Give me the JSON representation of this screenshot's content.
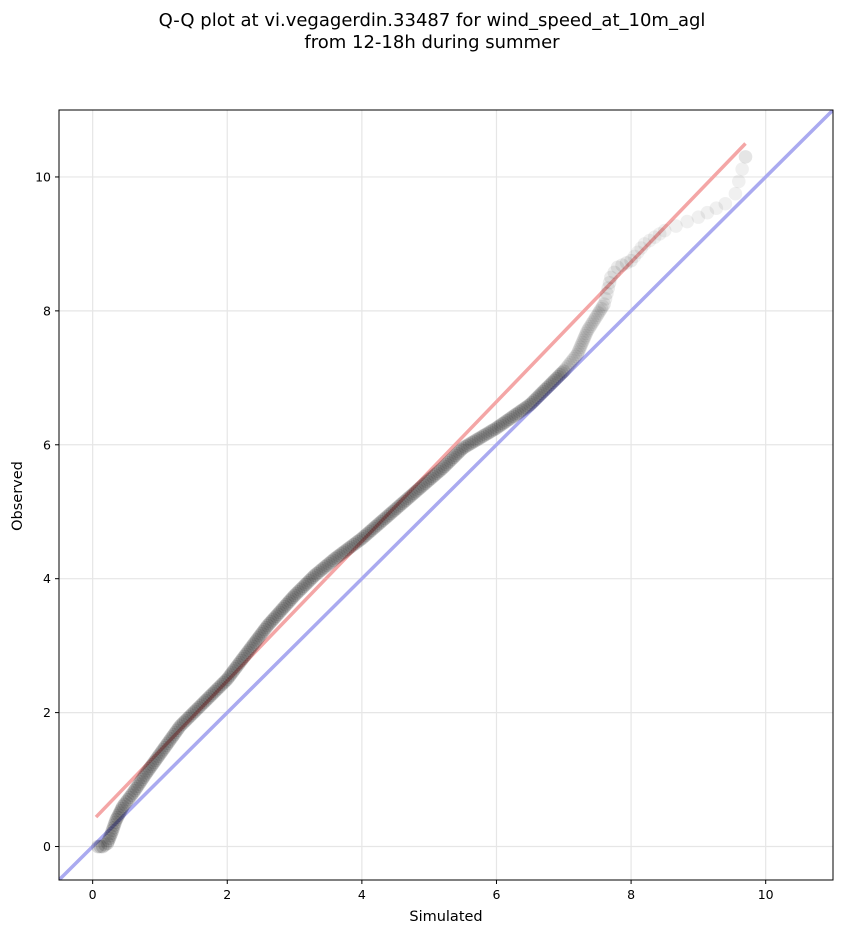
{
  "chart_data": {
    "type": "scatter",
    "title_line1": "Q-Q plot at vi.vegagerdin.33487 for wind_speed_at_10m_agl",
    "title_line2": "from 12-18h during summer",
    "xlabel": "Simulated",
    "ylabel": "Observed",
    "xlim": [
      -0.5,
      11
    ],
    "ylim": [
      -0.5,
      11
    ],
    "xticks": [
      0,
      2,
      4,
      6,
      8,
      10
    ],
    "yticks": [
      0,
      2,
      4,
      6,
      8,
      10
    ],
    "grid": true,
    "reference_line": {
      "name": "1:1",
      "color": "#aaaaf0",
      "from": [
        -0.5,
        -0.5
      ],
      "to": [
        11,
        11
      ]
    },
    "fit_line": {
      "color": "#f4a6a6",
      "from": [
        0.05,
        0.44
      ],
      "to": [
        9.7,
        10.5
      ]
    },
    "points_color": "#000000",
    "quantile_curve": [
      [
        0.08,
        0.0
      ],
      [
        0.15,
        0.0
      ],
      [
        0.22,
        0.05
      ],
      [
        0.28,
        0.2
      ],
      [
        0.35,
        0.4
      ],
      [
        0.45,
        0.6
      ],
      [
        0.6,
        0.8
      ],
      [
        0.8,
        1.1
      ],
      [
        1.0,
        1.38
      ],
      [
        1.3,
        1.8
      ],
      [
        1.6,
        2.1
      ],
      [
        2.0,
        2.5
      ],
      [
        2.3,
        2.9
      ],
      [
        2.6,
        3.3
      ],
      [
        3.0,
        3.75
      ],
      [
        3.3,
        4.05
      ],
      [
        3.6,
        4.3
      ],
      [
        4.0,
        4.6
      ],
      [
        4.4,
        4.95
      ],
      [
        4.8,
        5.3
      ],
      [
        5.2,
        5.65
      ],
      [
        5.5,
        5.95
      ],
      [
        6.0,
        6.25
      ],
      [
        6.5,
        6.6
      ],
      [
        7.0,
        7.1
      ],
      [
        7.2,
        7.35
      ],
      [
        7.35,
        7.7
      ],
      [
        7.6,
        8.1
      ],
      [
        7.7,
        8.5
      ],
      [
        7.8,
        8.65
      ],
      [
        8.0,
        8.75
      ],
      [
        8.2,
        9.0
      ],
      [
        8.5,
        9.2
      ],
      [
        9.0,
        9.4
      ],
      [
        9.4,
        9.6
      ],
      [
        9.55,
        9.75
      ],
      [
        9.7,
        10.3
      ]
    ]
  }
}
